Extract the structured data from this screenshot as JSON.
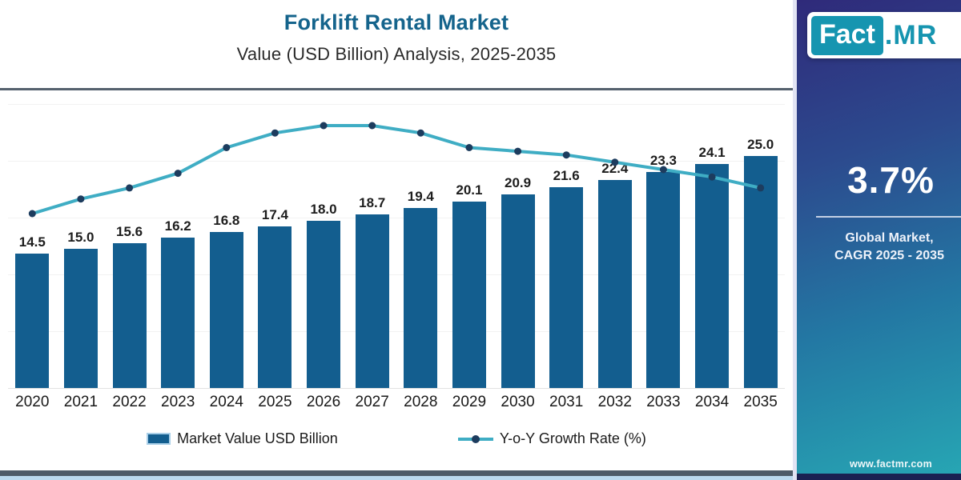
{
  "header": {
    "title": "Forklift Rental Market",
    "subtitle": "Value (USD Billion) Analysis, 2025-2035"
  },
  "chart_data": {
    "type": "bar",
    "subtype": "bar-line-combo",
    "title": "Forklift Rental Market",
    "subtitle": "Value (USD Billion) Analysis, 2025-2035",
    "xlabel": "",
    "ylabel": "",
    "categories": [
      "2020",
      "2021",
      "2022",
      "2023",
      "2024",
      "2025",
      "2026",
      "2027",
      "2028",
      "2029",
      "2030",
      "2031",
      "2032",
      "2033",
      "2034",
      "2035"
    ],
    "series": [
      {
        "name": "Market Value USD Billion",
        "type": "bar",
        "color": "#135e8f",
        "values": [
          14.5,
          15.0,
          15.6,
          16.2,
          16.8,
          17.4,
          18.0,
          18.7,
          19.4,
          20.1,
          20.9,
          21.6,
          22.4,
          23.3,
          24.1,
          25.0
        ]
      },
      {
        "name": "Y-o-Y Growth Rate (%)",
        "type": "line",
        "color": "#3fadc4",
        "marker_color": "#1d3c5e",
        "values_estimated_from_curve": true,
        "values": [
          3.0,
          3.2,
          3.35,
          3.55,
          3.9,
          4.1,
          4.2,
          4.2,
          4.1,
          3.9,
          3.85,
          3.8,
          3.7,
          3.6,
          3.5,
          3.35
        ]
      }
    ],
    "ylim": [
      0,
      27
    ],
    "y2lim": [
      2.8,
      4.4
    ],
    "grid": false,
    "bar_value_labels_shown": true,
    "legend_position": "bottom"
  },
  "legend": {
    "bar_label": "Market Value USD Billion",
    "line_label": "Y-o-Y Growth Rate (%)"
  },
  "sidebar": {
    "logo_part1": "Fact",
    "logo_part2": ".MR",
    "cagr_value": "3.7%",
    "caption_line1": "Global Market,",
    "caption_line2": "CAGR 2025 - 2035",
    "website": "www.factmr.com"
  },
  "colors": {
    "bar": "#135e8f",
    "line": "#3fadc4",
    "marker": "#1d3c5e",
    "title_blue": "#15648c",
    "logo_teal": "#1695b0",
    "sidebar_top": "#2f2a7a",
    "sidebar_mid1": "#2c4a8e",
    "sidebar_mid2": "#2377a3",
    "sidebar_bottom": "#27a7b4",
    "band_dark": "#4d5a68",
    "band_light": "#b9d8ee"
  }
}
